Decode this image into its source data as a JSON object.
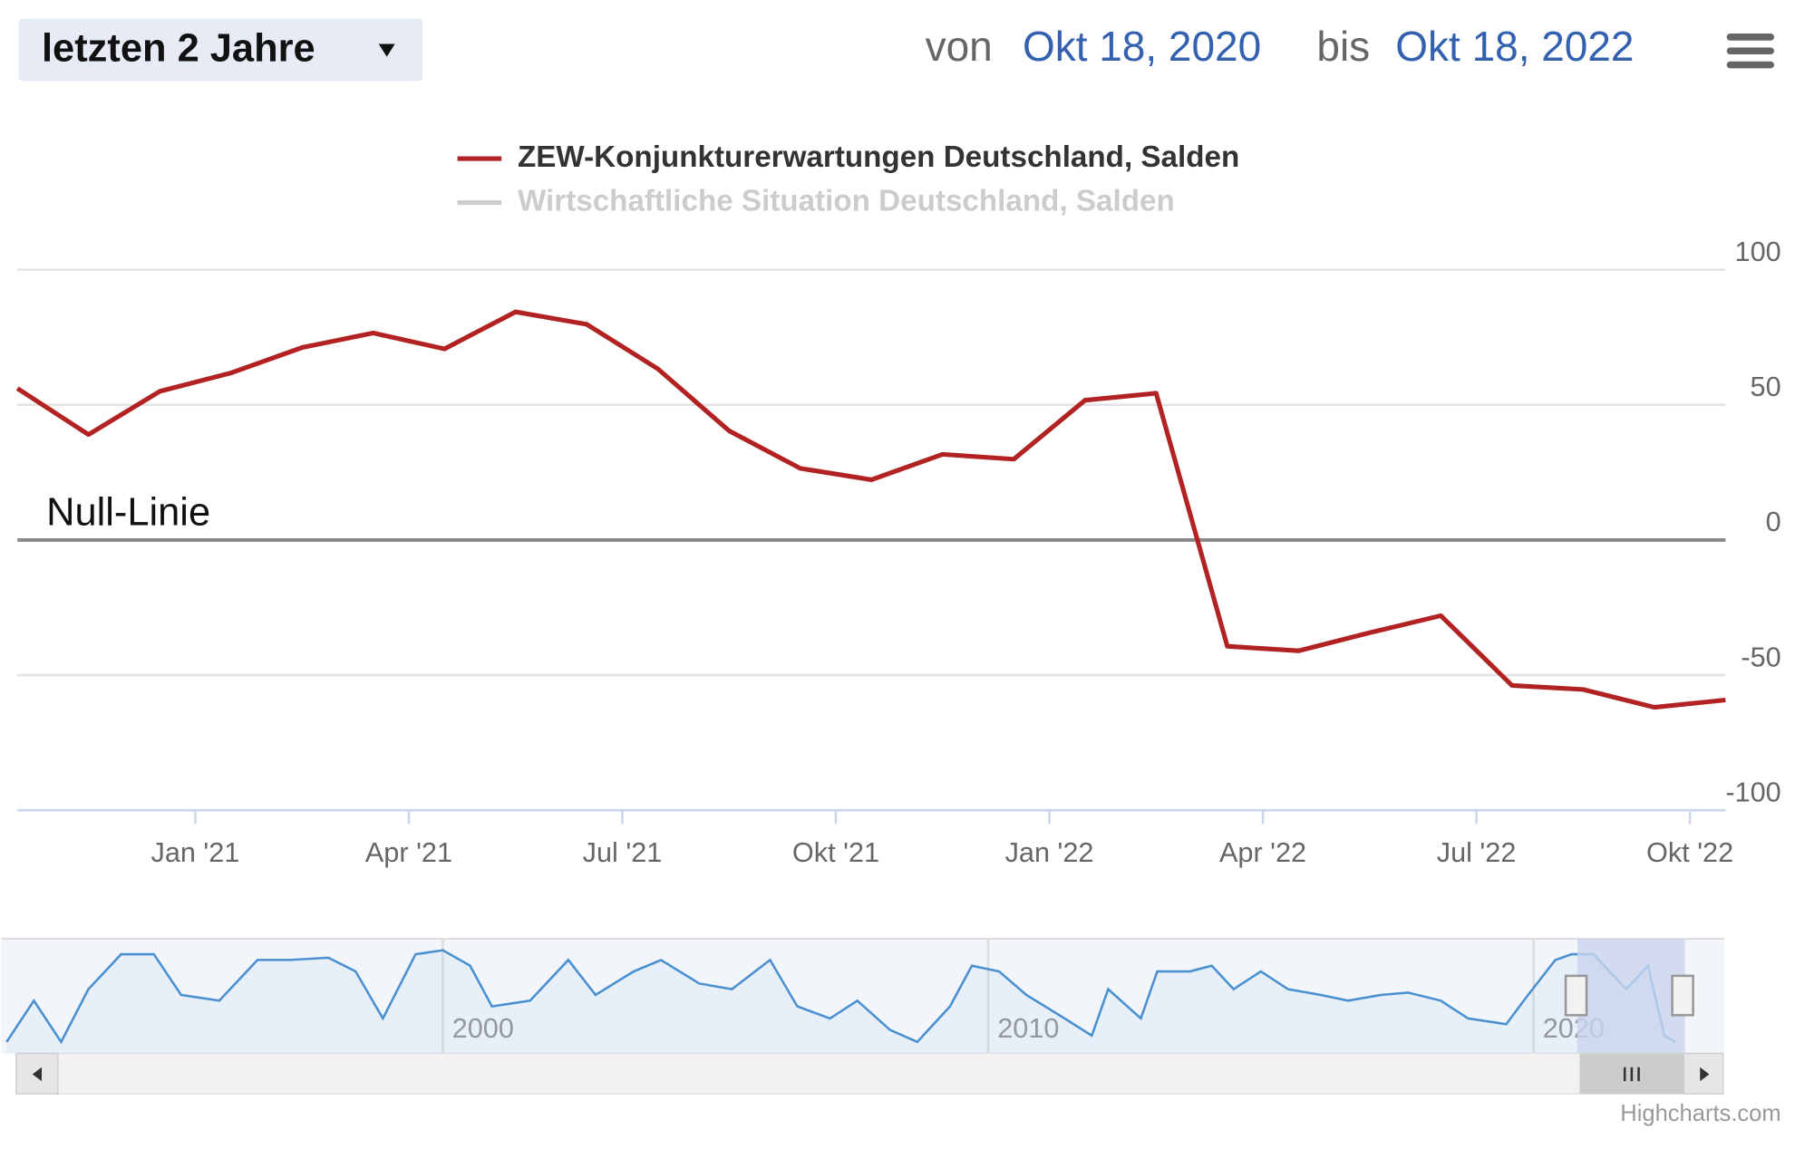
{
  "ui": {
    "range_button": "letzten 2 Jahre",
    "from_label": "von",
    "from_date": "Okt 18, 2020",
    "to_label": "bis",
    "to_date": "Okt 18, 2022",
    "credit": "Highcharts.com"
  },
  "chart_data": {
    "type": "line",
    "x": [
      "2020-10",
      "2020-11",
      "2020-12",
      "2021-01",
      "2021-02",
      "2021-03",
      "2021-04",
      "2021-05",
      "2021-06",
      "2021-07",
      "2021-08",
      "2021-09",
      "2021-10",
      "2021-11",
      "2021-12",
      "2022-01",
      "2022-02",
      "2022-03",
      "2022-04",
      "2022-05",
      "2022-06",
      "2022-07",
      "2022-08",
      "2022-09",
      "2022-10"
    ],
    "series": [
      {
        "name": "ZEW-Konjunkturerwartungen Deutschland, Salden",
        "color": "#b22222",
        "values": [
          56.1,
          39.0,
          55.0,
          61.8,
          71.2,
          76.6,
          70.7,
          84.4,
          79.8,
          63.3,
          40.4,
          26.5,
          22.3,
          31.7,
          29.9,
          51.7,
          54.3,
          -39.3,
          -41.0,
          -34.3,
          -28.0,
          -53.8,
          -55.3,
          -61.9,
          -59.2
        ]
      },
      {
        "name": "Wirtschaftliche Situation Deutschland, Salden",
        "color": "#cccccc",
        "visible": false
      }
    ],
    "xlim": [
      "2020-10",
      "2022-10"
    ],
    "xticks": [
      {
        "value": "2021-01",
        "label": "Jan '21"
      },
      {
        "value": "2021-04",
        "label": "Apr '21"
      },
      {
        "value": "2021-07",
        "label": "Jul '21"
      },
      {
        "value": "2021-10",
        "label": "Okt '21"
      },
      {
        "value": "2022-01",
        "label": "Jan '22"
      },
      {
        "value": "2022-04",
        "label": "Apr '22"
      },
      {
        "value": "2022-07",
        "label": "Jul '22"
      },
      {
        "value": "2022-10",
        "label": "Okt '22"
      }
    ],
    "ylim": [
      -100,
      100
    ],
    "yticks": [
      -100,
      -50,
      0,
      50,
      100
    ],
    "grid": true,
    "annotations": [
      {
        "text": "Null-Linie",
        "value": 0
      }
    ],
    "navigator": {
      "color": "#4a90d0",
      "x": [
        1992.0,
        1992.5,
        1993.0,
        1993.5,
        1994.1,
        1994.7,
        1995.2,
        1995.9,
        1996.6,
        1997.2,
        1997.9,
        1998.4,
        1998.9,
        1999.5,
        2000.0,
        2000.5,
        2000.9,
        2001.6,
        2002.3,
        2002.8,
        2003.5,
        2004.0,
        2004.7,
        2005.3,
        2006.0,
        2006.5,
        2007.1,
        2007.6,
        2008.2,
        2008.7,
        2009.3,
        2009.7,
        2010.2,
        2010.7,
        2011.4,
        2011.9,
        2012.2,
        2012.8,
        2013.1,
        2013.7,
        2014.1,
        2014.5,
        2015.0,
        2015.5,
        2016.1,
        2016.6,
        2017.2,
        2017.7,
        2018.3,
        2018.8,
        2019.5,
        2019.9,
        2020.4,
        2020.7,
        2021.1,
        2021.7,
        2022.1,
        2022.4,
        2022.6
      ],
      "values": [
        -80,
        -8,
        -80,
        12,
        73,
        73,
        2,
        -8,
        63,
        63,
        67,
        43,
        -39,
        73,
        80,
        53,
        -18,
        -8,
        63,
        2,
        43,
        63,
        22,
        12,
        63,
        -18,
        -39,
        -8,
        -59,
        -80,
        -18,
        53,
        43,
        2,
        -39,
        -69,
        12,
        -39,
        43,
        43,
        53,
        12,
        43,
        12,
        2,
        -8,
        2,
        6,
        -8,
        -39,
        -49,
        2,
        63,
        73,
        73,
        12,
        53,
        -69,
        -80
      ],
      "xlim": [
        1991.9,
        2023.5
      ],
      "ylim": [
        -100,
        100
      ],
      "xticks": [
        2000,
        2010,
        2020
      ]
    }
  }
}
